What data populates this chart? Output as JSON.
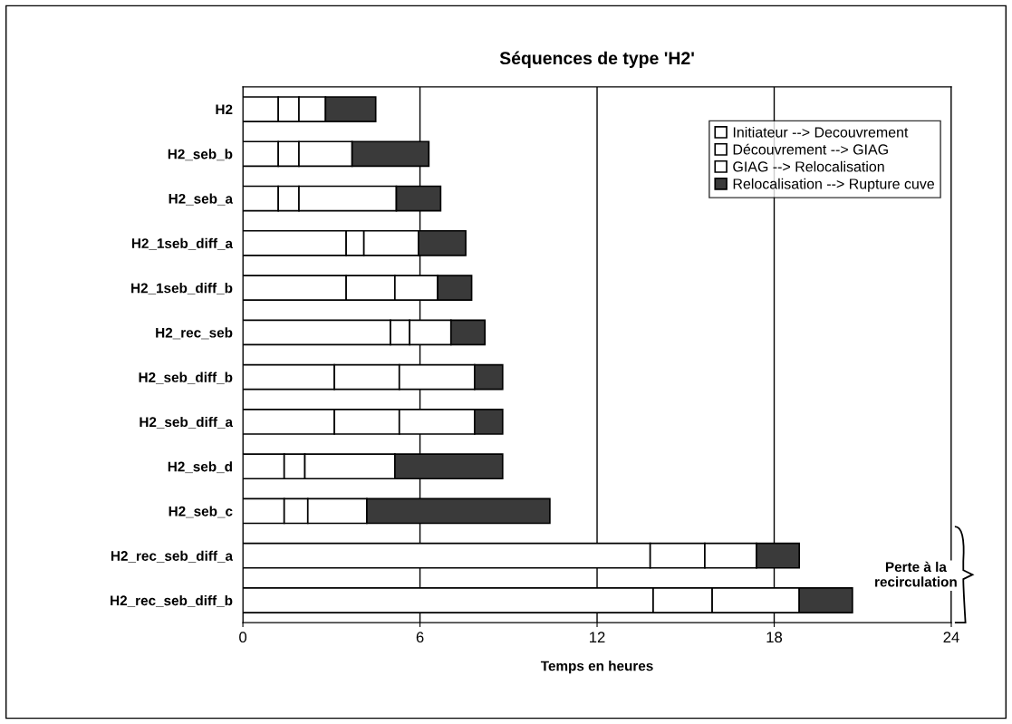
{
  "chart_data": {
    "type": "bar",
    "orientation": "horizontal",
    "stacked": true,
    "title": "Séquences de type 'H2'",
    "xlabel": "Temps en heures",
    "categories": [
      "H2",
      "H2_seb_b",
      "H2_seb_a",
      "H2_1seb_diff_a",
      "H2_1seb_diff_b",
      "H2_rec_seb",
      "H2_seb_diff_b",
      "H2_seb_diff_a",
      "H2_seb_d",
      "H2_seb_c",
      "H2_rec_seb_diff_a",
      "H2_rec_seb_diff_b"
    ],
    "series": [
      {
        "name": "Initiateur --> Decouvrement",
        "color": "#ffffff",
        "values": [
          1.2,
          1.2,
          1.2,
          3.5,
          3.5,
          5.0,
          3.1,
          3.1,
          1.4,
          1.4,
          13.8,
          13.9
        ]
      },
      {
        "name": "Découvrement --> GIAG",
        "color": "#ffffff",
        "values": [
          0.7,
          0.7,
          0.7,
          0.6,
          1.65,
          0.65,
          2.2,
          2.2,
          0.7,
          0.8,
          1.85,
          2.0
        ]
      },
      {
        "name": "GIAG --> Relocalisation",
        "color": "#ffffff",
        "values": [
          0.9,
          1.8,
          3.3,
          1.85,
          1.45,
          1.4,
          2.55,
          2.55,
          3.05,
          2.0,
          1.75,
          2.95
        ]
      },
      {
        "name": "Relocalisation --> Rupture cuve",
        "color": "#3a3a3a",
        "values": [
          1.7,
          2.6,
          1.5,
          1.6,
          1.15,
          1.15,
          0.95,
          0.95,
          3.65,
          6.2,
          1.45,
          1.8
        ]
      }
    ],
    "xlim": [
      0,
      24
    ],
    "xticks": [
      0,
      6,
      12,
      18,
      24
    ],
    "grid": "x",
    "legend": "top right",
    "annotations": [
      "Perte à la\nrecirculation"
    ]
  }
}
